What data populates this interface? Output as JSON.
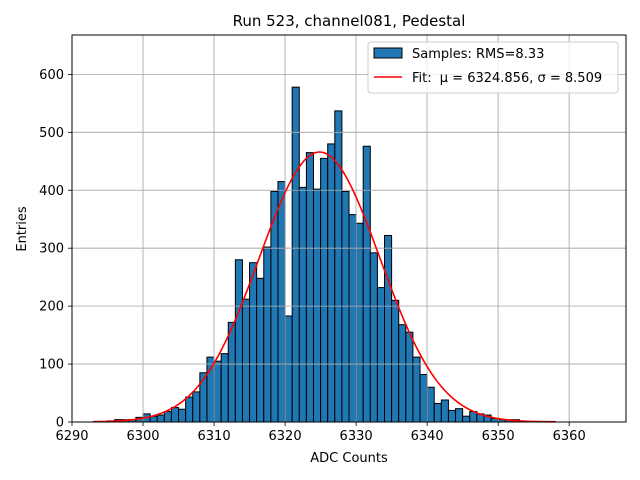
{
  "chart_data": {
    "type": "bar",
    "title": "Run 523, channel081, Pedestal",
    "xlabel": "ADC Counts",
    "ylabel": "Entries",
    "xlim": [
      6290,
      6368
    ],
    "ylim": [
      0,
      668
    ],
    "xticks": [
      6290,
      6300,
      6310,
      6320,
      6330,
      6340,
      6350,
      6360
    ],
    "yticks": [
      0,
      100,
      200,
      300,
      400,
      500,
      600
    ],
    "grid": true,
    "legend_position": "top-right",
    "histogram": {
      "name": "Samples: RMS=8.33",
      "color": "#1f77b4",
      "bin_width": 1,
      "bin_start": 6293,
      "counts": [
        1,
        1,
        2,
        4,
        4,
        4,
        8,
        14,
        10,
        12,
        18,
        25,
        22,
        43,
        52,
        85,
        112,
        105,
        118,
        172,
        280,
        212,
        275,
        248,
        302,
        398,
        415,
        183,
        578,
        405,
        465,
        402,
        455,
        480,
        537,
        398,
        358,
        343,
        476,
        292,
        232,
        322,
        210,
        168,
        155,
        112,
        82,
        60,
        32,
        38,
        20,
        23,
        10,
        18,
        14,
        12,
        6,
        4,
        4,
        4,
        1,
        1,
        1,
        1,
        1
      ]
    },
    "fit": {
      "name_prefix": "Fit: ",
      "mu_label": "μ = 6324.856",
      "sigma_label": "σ = 8.509",
      "mu": 6324.856,
      "sigma": 8.509,
      "amplitude": 466,
      "x_from": 6293,
      "x_to": 6358,
      "color": "#ff0000"
    }
  }
}
